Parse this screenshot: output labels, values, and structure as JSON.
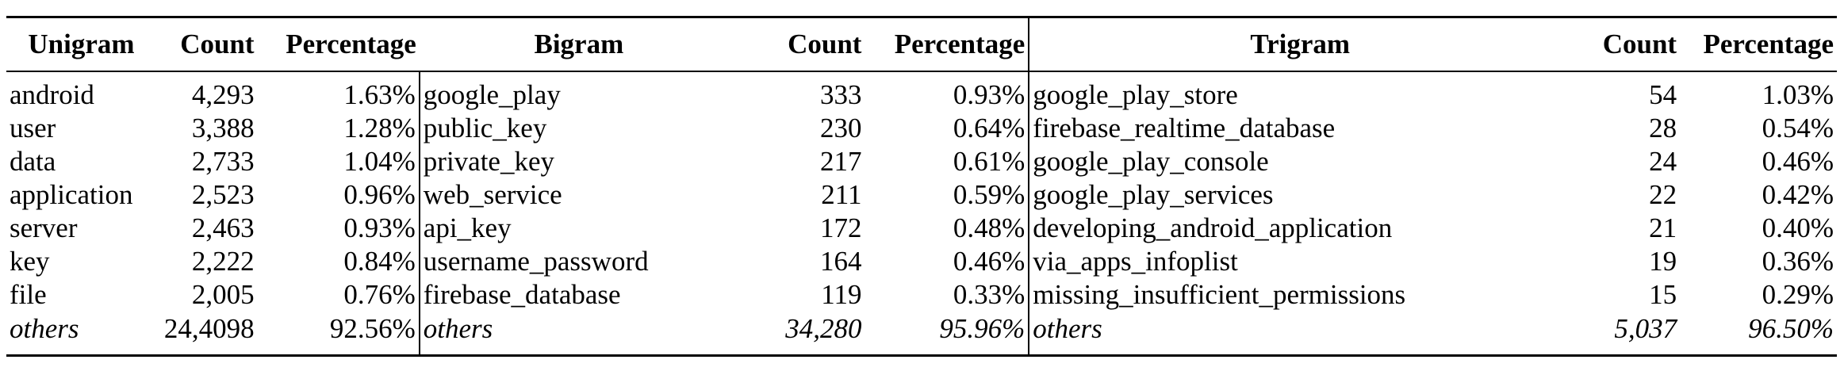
{
  "headers": {
    "unigram": "Unigram",
    "count1": "Count",
    "pct1": "Percentage",
    "bigram": "Bigram",
    "count2": "Count",
    "pct2": "Percentage",
    "trigram": "Trigram",
    "count3": "Count",
    "pct3": "Percentage"
  },
  "rows": [
    {
      "uni": "android",
      "uc": "4,293",
      "up": "1.63%",
      "bi": "google_play",
      "bc": "333",
      "bp": "0.93%",
      "tri": "google_play_store",
      "tc": "54",
      "tp": "1.03%"
    },
    {
      "uni": "user",
      "uc": "3,388",
      "up": "1.28%",
      "bi": "public_key",
      "bc": "230",
      "bp": "0.64%",
      "tri": "firebase_realtime_database",
      "tc": "28",
      "tp": "0.54%"
    },
    {
      "uni": "data",
      "uc": "2,733",
      "up": "1.04%",
      "bi": "private_key",
      "bc": "217",
      "bp": "0.61%",
      "tri": "google_play_console",
      "tc": "24",
      "tp": "0.46%"
    },
    {
      "uni": "application",
      "uc": "2,523",
      "up": "0.96%",
      "bi": "web_service",
      "bc": "211",
      "bp": "0.59%",
      "tri": "google_play_services",
      "tc": "22",
      "tp": "0.42%"
    },
    {
      "uni": "server",
      "uc": "2,463",
      "up": "0.93%",
      "bi": "api_key",
      "bc": "172",
      "bp": "0.48%",
      "tri": "developing_android_application",
      "tc": "21",
      "tp": "0.40%"
    },
    {
      "uni": "key",
      "uc": "2,222",
      "up": "0.84%",
      "bi": "username_password",
      "bc": "164",
      "bp": "0.46%",
      "tri": "via_apps_infoplist",
      "tc": "19",
      "tp": "0.36%"
    },
    {
      "uni": "file",
      "uc": "2,005",
      "up": "0.76%",
      "bi": "firebase_database",
      "bc": "119",
      "bp": "0.33%",
      "tri": "missing_insufficient_permissions",
      "tc": "15",
      "tp": "0.29%"
    },
    {
      "uni": "others",
      "uc": "24,4098",
      "up": "92.56%",
      "bi": "others",
      "bc": "34,280",
      "bp": "95.96%",
      "tri": "others",
      "tc": "5,037",
      "tp": "96.50%"
    }
  ]
}
